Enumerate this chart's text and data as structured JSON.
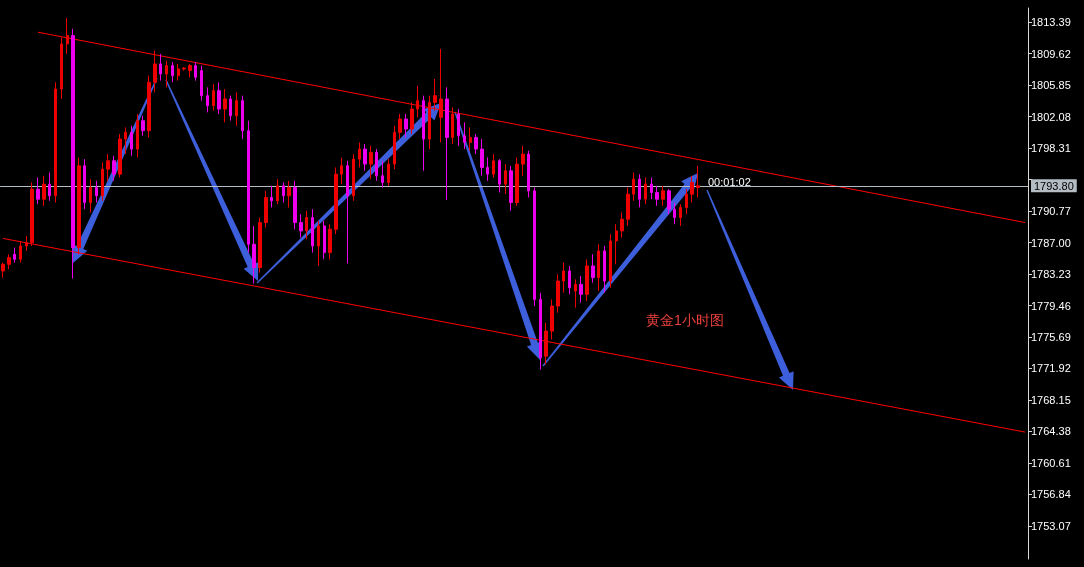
{
  "chart_data": {
    "type": "candlestick",
    "categories": [
      null,
      null,
      null,
      null,
      null,
      null,
      null,
      null,
      null,
      null,
      null,
      null,
      null,
      null,
      null,
      null,
      null,
      null,
      null,
      null,
      null,
      null,
      null,
      null,
      null,
      null,
      null,
      null,
      null,
      null,
      null,
      null,
      null,
      null,
      null,
      null,
      null,
      null,
      null,
      null,
      null,
      null,
      null,
      null,
      null,
      null,
      null,
      null,
      null,
      null,
      null,
      null,
      null,
      null,
      null,
      null,
      null,
      null,
      null,
      null,
      null,
      null,
      null,
      null,
      null,
      null,
      null,
      null,
      null,
      null,
      null,
      null,
      null,
      null,
      null,
      null,
      null,
      null,
      null,
      null,
      null,
      null,
      null,
      null,
      null,
      null,
      null,
      null,
      null,
      null,
      null,
      null,
      null,
      null,
      null,
      null,
      null,
      null,
      null,
      null,
      null,
      null,
      null,
      null,
      null,
      null,
      null,
      null,
      null,
      null,
      null,
      null,
      null,
      null,
      null,
      null,
      null,
      null,
      null,
      null,
      null,
      null,
      null,
      null,
      null,
      null,
      null,
      null,
      null,
      null,
      null,
      null,
      null,
      null,
      null,
      null,
      null,
      null,
      null,
      null,
      null,
      null,
      null,
      null,
      null,
      null,
      null,
      null,
      null,
      null,
      null,
      null,
      null,
      null,
      null,
      null,
      null,
      null,
      null,
      null,
      null,
      null,
      null,
      null,
      null,
      null,
      null,
      null,
      null,
      null,
      null,
      null,
      null,
      null,
      null,
      null
    ],
    "ohlc": [
      [
        1783.6,
        1784.6,
        1782.8,
        1784.4
      ],
      [
        1784.4,
        1785.6,
        1783.8,
        1785.2
      ],
      [
        1785.6,
        1786.4,
        1784.6,
        1785.0
      ],
      [
        1785.0,
        1787.2,
        1784.6,
        1786.6
      ],
      [
        1786.6,
        1787.8,
        1786.0,
        1787.0
      ],
      [
        1787.0,
        1794.2,
        1786.6,
        1793.4
      ],
      [
        1793.4,
        1794.8,
        1791.6,
        1792.2
      ],
      [
        1792.2,
        1795.0,
        1791.4,
        1794.0
      ],
      [
        1794.0,
        1795.4,
        1792.0,
        1792.6
      ],
      [
        1792.6,
        1806.2,
        1791.8,
        1805.4
      ],
      [
        1805.4,
        1811.6,
        1804.2,
        1810.8
      ],
      [
        1810.8,
        1813.9,
        1809.6,
        1811.8
      ],
      [
        1811.8,
        1812.6,
        1782.7,
        1786.4
      ],
      [
        1786.4,
        1797.2,
        1785.6,
        1796.2
      ],
      [
        1796.2,
        1797.0,
        1791.0,
        1791.8
      ],
      [
        1791.8,
        1794.6,
        1790.6,
        1793.6
      ],
      [
        1793.6,
        1794.4,
        1791.8,
        1792.6
      ],
      [
        1792.6,
        1796.6,
        1792.0,
        1795.8
      ],
      [
        1795.8,
        1797.6,
        1794.4,
        1796.8
      ],
      [
        1796.8,
        1797.4,
        1794.4,
        1795.2
      ],
      [
        1795.2,
        1800.0,
        1794.8,
        1799.4
      ],
      [
        1799.4,
        1800.8,
        1797.6,
        1800.2
      ],
      [
        1800.2,
        1801.0,
        1797.4,
        1798.2
      ],
      [
        1798.2,
        1802.4,
        1797.2,
        1801.6
      ],
      [
        1801.6,
        1802.2,
        1799.8,
        1800.4
      ],
      [
        1800.4,
        1807.0,
        1799.6,
        1806.2
      ],
      [
        1806.2,
        1810.0,
        1805.0,
        1808.4
      ],
      [
        1808.4,
        1809.6,
        1806.4,
        1807.2
      ],
      [
        1807.2,
        1808.8,
        1805.6,
        1808.2
      ],
      [
        1808.2,
        1808.6,
        1806.2,
        1807.0
      ],
      [
        1807.0,
        1808.4,
        1806.4,
        1807.8
      ],
      [
        1807.8,
        1808.0,
        1807.6,
        1807.9
      ],
      [
        1807.6,
        1808.4,
        1806.8,
        1808.2
      ],
      [
        1808.2,
        1808.6,
        1806.4,
        1806.8
      ],
      [
        1807.6,
        1808.2,
        1804.0,
        1804.6
      ],
      [
        1804.6,
        1805.6,
        1802.6,
        1803.4
      ],
      [
        1803.4,
        1806.0,
        1802.8,
        1805.2
      ],
      [
        1805.2,
        1806.2,
        1802.4,
        1803.0
      ],
      [
        1803.0,
        1805.4,
        1801.4,
        1804.2
      ],
      [
        1804.2,
        1804.6,
        1801.6,
        1802.2
      ],
      [
        1802.2,
        1805.0,
        1801.0,
        1804.0
      ],
      [
        1804.0,
        1804.6,
        1799.4,
        1800.4
      ],
      [
        1800.4,
        1801.6,
        1785.8,
        1786.8
      ],
      [
        1786.8,
        1789.0,
        1782.1,
        1784.0
      ],
      [
        1784.0,
        1790.0,
        1783.4,
        1789.4
      ],
      [
        1789.4,
        1793.2,
        1788.8,
        1792.4
      ],
      [
        1792.4,
        1793.8,
        1791.2,
        1792.0
      ],
      [
        1792.0,
        1794.6,
        1791.6,
        1793.8
      ],
      [
        1793.8,
        1794.2,
        1791.8,
        1792.6
      ],
      [
        1792.6,
        1794.4,
        1791.2,
        1793.6
      ],
      [
        1793.6,
        1794.4,
        1788.6,
        1789.4
      ],
      [
        1789.4,
        1790.4,
        1787.6,
        1788.4
      ],
      [
        1788.4,
        1790.8,
        1787.4,
        1790.0
      ],
      [
        1790.0,
        1791.0,
        1785.8,
        1786.6
      ],
      [
        1786.6,
        1789.6,
        1784.2,
        1789.0
      ],
      [
        1789.0,
        1789.6,
        1785.0,
        1785.8
      ],
      [
        1785.8,
        1789.2,
        1785.0,
        1788.6
      ],
      [
        1788.6,
        1796.0,
        1788.0,
        1795.2
      ],
      [
        1795.2,
        1797.2,
        1794.0,
        1796.2
      ],
      [
        1796.2,
        1796.8,
        1784.5,
        1792.6
      ],
      [
        1792.6,
        1797.6,
        1792.0,
        1797.0
      ],
      [
        1797.0,
        1799.0,
        1796.0,
        1798.2
      ],
      [
        1798.2,
        1798.8,
        1795.6,
        1796.4
      ],
      [
        1796.4,
        1798.6,
        1794.6,
        1797.8
      ],
      [
        1797.8,
        1798.2,
        1794.4,
        1795.0
      ],
      [
        1795.0,
        1796.8,
        1793.6,
        1794.2
      ],
      [
        1794.2,
        1797.0,
        1793.8,
        1796.4
      ],
      [
        1796.4,
        1801.0,
        1795.8,
        1800.2
      ],
      [
        1800.2,
        1802.4,
        1799.4,
        1801.8
      ],
      [
        1801.8,
        1802.4,
        1799.6,
        1800.6
      ],
      [
        1800.6,
        1803.8,
        1800.0,
        1803.0
      ],
      [
        1803.0,
        1805.8,
        1802.0,
        1804.0
      ],
      [
        1804.0,
        1804.6,
        1795.6,
        1799.4
      ],
      [
        1799.4,
        1804.6,
        1798.2,
        1803.8
      ],
      [
        1803.8,
        1806.6,
        1802.8,
        1804.6
      ],
      [
        1802.0,
        1810.2,
        1799.0,
        1804.2
      ],
      [
        1804.2,
        1805.6,
        1792.1,
        1799.6
      ],
      [
        1799.6,
        1803.2,
        1798.8,
        1802.4
      ],
      [
        1802.4,
        1803.0,
        1798.6,
        1799.8
      ],
      [
        1799.8,
        1801.4,
        1798.2,
        1799.0
      ],
      [
        1799.0,
        1800.8,
        1798.0,
        1799.6
      ],
      [
        1799.6,
        1800.0,
        1797.6,
        1798.2
      ],
      [
        1798.2,
        1799.4,
        1795.0,
        1796.0
      ],
      [
        1796.0,
        1797.2,
        1794.4,
        1795.2
      ],
      [
        1795.2,
        1797.6,
        1794.8,
        1796.8
      ],
      [
        1796.8,
        1797.0,
        1793.0,
        1794.0
      ],
      [
        1794.0,
        1796.4,
        1792.8,
        1795.6
      ],
      [
        1795.6,
        1796.2,
        1790.8,
        1791.8
      ],
      [
        1791.8,
        1797.2,
        1791.4,
        1796.4
      ],
      [
        1796.4,
        1798.6,
        1795.0,
        1797.6
      ],
      [
        1797.6,
        1798.0,
        1792.4,
        1793.2
      ],
      [
        1793.2,
        1793.6,
        1779.4,
        1780.2
      ],
      [
        1780.2,
        1781.0,
        1771.8,
        1773.2
      ],
      [
        1773.4,
        1777.4,
        1772.4,
        1776.4
      ],
      [
        1776.4,
        1780.2,
        1775.4,
        1779.4
      ],
      [
        1779.4,
        1783.2,
        1778.6,
        1782.4
      ],
      [
        1782.4,
        1784.6,
        1781.0,
        1783.6
      ],
      [
        1783.6,
        1784.2,
        1780.8,
        1781.6
      ],
      [
        1781.2,
        1782.6,
        1779.2,
        1782.0
      ],
      [
        1782.0,
        1783.0,
        1779.8,
        1780.8
      ],
      [
        1780.8,
        1785.0,
        1780.0,
        1784.2
      ],
      [
        1784.2,
        1785.6,
        1782.2,
        1782.8
      ],
      [
        1782.8,
        1786.8,
        1781.2,
        1786.0
      ],
      [
        1786.0,
        1786.6,
        1781.0,
        1782.4
      ],
      [
        1782.4,
        1788.0,
        1781.6,
        1787.2
      ],
      [
        1787.2,
        1789.2,
        1784.4,
        1788.4
      ],
      [
        1788.4,
        1790.6,
        1787.6,
        1789.8
      ],
      [
        1789.8,
        1793.6,
        1789.0,
        1792.8
      ],
      [
        1792.8,
        1795.4,
        1792.0,
        1794.6
      ],
      [
        1794.6,
        1795.2,
        1791.2,
        1792.2
      ],
      [
        1792.2,
        1794.8,
        1791.6,
        1794.0
      ],
      [
        1794.0,
        1794.8,
        1792.2,
        1793.0
      ],
      [
        1793.0,
        1793.8,
        1791.4,
        1792.2
      ],
      [
        1792.2,
        1793.8,
        1791.4,
        1793.2
      ],
      [
        1793.2,
        1793.4,
        1790.4,
        1791.0
      ],
      [
        1791.0,
        1791.8,
        1789.2,
        1790.0
      ],
      [
        1790.0,
        1791.6,
        1789.0,
        1791.2
      ],
      [
        1791.2,
        1793.4,
        1790.4,
        1792.8
      ],
      [
        1792.8,
        1795.0,
        1791.8,
        1794.2
      ],
      [
        1793.6,
        1796.2,
        1792.4,
        1793.8
      ],
      null,
      null,
      null,
      null,
      null,
      null,
      null,
      null,
      null,
      null,
      null,
      null,
      null,
      null,
      null,
      null,
      null,
      null,
      null,
      null,
      null,
      null,
      null,
      null,
      null,
      null,
      null,
      null,
      null,
      null,
      null,
      null,
      null,
      null,
      null,
      null,
      null,
      null,
      null,
      null,
      null,
      null,
      null,
      null,
      null,
      null,
      null,
      null,
      null,
      null,
      null,
      null,
      null,
      null,
      null,
      null
    ],
    "colors": [
      "#ee0000",
      "#ee0000",
      "#ee00ee",
      "#ee0000",
      "#ee0000",
      "#ee0000",
      "#ee00ee",
      "#ee0000",
      "#ee00ee",
      "#ee0000",
      "#ee0000",
      "#ee0000",
      "#ee00ee",
      "#ee0000",
      "#ee00ee",
      "#ee0000",
      "#ee00ee",
      "#ee0000",
      "#ee0000",
      "#ee00ee",
      "#ee0000",
      "#ee0000",
      "#ee00ee",
      "#ee0000",
      "#ee00ee",
      "#ee0000",
      "#ee0000",
      "#ee00ee",
      "#ee0000",
      "#ee00ee",
      "#ee0000",
      "#ee0000",
      "#ee0000",
      "#ee00ee",
      "#ee00ee",
      "#ee00ee",
      "#ee0000",
      "#ee00ee",
      "#ee0000",
      "#ee00ee",
      "#ee0000",
      "#ee00ee",
      "#ee00ee",
      "#ee00ee",
      "#ee0000",
      "#ee0000",
      "#ee00ee",
      "#ee0000",
      "#ee00ee",
      "#ee0000",
      "#ee00ee",
      "#ee00ee",
      "#ee0000",
      "#ee00ee",
      "#ee0000",
      "#ee00ee",
      "#ee0000",
      "#ee0000",
      "#ee0000",
      "#ee00ee",
      "#ee0000",
      "#ee0000",
      "#ee00ee",
      "#ee0000",
      "#ee00ee",
      "#ee00ee",
      "#ee0000",
      "#ee0000",
      "#ee0000",
      "#ee00ee",
      "#ee0000",
      "#ee0000",
      "#ee00ee",
      "#ee0000",
      "#ee0000",
      "#ee0000",
      "#ee00ee",
      "#ee0000",
      "#ee00ee",
      "#ee00ee",
      "#ee0000",
      "#ee00ee",
      "#ee00ee",
      "#ee00ee",
      "#ee0000",
      "#ee00ee",
      "#ee0000",
      "#ee00ee",
      "#ee0000",
      "#ee0000",
      "#ee00ee",
      "#ee00ee",
      "#ee00ee",
      "#ee0000",
      "#ee0000",
      "#ee0000",
      "#ee0000",
      "#ee00ee",
      "#ee0000",
      "#ee00ee",
      "#ee0000",
      "#ee00ee",
      "#ee0000",
      "#ee00ee",
      "#ee0000",
      "#ee0000",
      "#ee0000",
      "#ee0000",
      "#ee0000",
      "#ee00ee",
      "#ee0000",
      "#ee00ee",
      "#ee00ee",
      "#ee0000",
      "#ee00ee",
      "#ee00ee",
      "#ee0000",
      "#ee0000",
      "#ee0000",
      "#ee0000",
      null,
      null,
      null,
      null,
      null,
      null,
      null,
      null,
      null,
      null,
      null,
      null,
      null,
      null,
      null,
      null,
      null,
      null,
      null,
      null,
      null,
      null,
      null,
      null,
      null,
      null,
      null,
      null,
      null,
      null,
      null,
      null,
      null,
      null,
      null,
      null,
      null,
      null,
      null,
      null,
      null,
      null,
      null,
      null,
      null,
      null,
      null,
      null,
      null,
      null,
      null,
      null,
      null,
      null,
      null,
      null
    ],
    "series": [
      {
        "type": "line",
        "color": "#ff0000",
        "values": [
          null,
          null,
          null,
          null,
          null,
          null,
          1812.2,
          null,
          null,
          null,
          null,
          null,
          null,
          null,
          null,
          null,
          null,
          null,
          null,
          null,
          null,
          null,
          null,
          null,
          null,
          null,
          null,
          null,
          null,
          null,
          null,
          null,
          null,
          null,
          null,
          null,
          null,
          null,
          null,
          null,
          null,
          null,
          null,
          null,
          null,
          null,
          null,
          null,
          null,
          null,
          null,
          null,
          null,
          null,
          null,
          null,
          null,
          null,
          null,
          null,
          null,
          null,
          null,
          null,
          null,
          null,
          null,
          null,
          null,
          null,
          null,
          null,
          null,
          null,
          null,
          null,
          null,
          null,
          null,
          null,
          null,
          null,
          null,
          null,
          null,
          null,
          null,
          null,
          null,
          null,
          null,
          null,
          null,
          null,
          null,
          null,
          null,
          null,
          null,
          null,
          null,
          null,
          null,
          null,
          null,
          null,
          null,
          null,
          null,
          null,
          null,
          null,
          null,
          null,
          null,
          null,
          null,
          null,
          null,
          null,
          null,
          null,
          null,
          null,
          null,
          null,
          null,
          null,
          null,
          null,
          null,
          null,
          null,
          null,
          null,
          null,
          null,
          null,
          null,
          null,
          null,
          null,
          null,
          null,
          null,
          null,
          null,
          null,
          null,
          null,
          null,
          null,
          null,
          null,
          null,
          null,
          null,
          null,
          null,
          null,
          null,
          null,
          null,
          null,
          null,
          null,
          null,
          null,
          null,
          null,
          null,
          null,
          null,
          null,
          null,
          1789.4
        ]
      },
      {
        "type": "line",
        "color": "#ff0000",
        "values": [
          1787.5,
          null,
          null,
          null,
          null,
          null,
          null,
          null,
          null,
          null,
          null,
          null,
          null,
          null,
          null,
          null,
          null,
          null,
          null,
          null,
          null,
          null,
          null,
          null,
          null,
          null,
          null,
          null,
          null,
          null,
          null,
          null,
          null,
          null,
          null,
          null,
          null,
          null,
          null,
          null,
          null,
          null,
          null,
          null,
          null,
          null,
          null,
          null,
          null,
          null,
          null,
          null,
          null,
          null,
          null,
          null,
          null,
          null,
          null,
          null,
          null,
          null,
          null,
          null,
          null,
          null,
          null,
          null,
          null,
          null,
          null,
          null,
          null,
          null,
          null,
          null,
          null,
          null,
          null,
          null,
          null,
          null,
          null,
          null,
          null,
          null,
          null,
          null,
          null,
          null,
          null,
          null,
          null,
          null,
          null,
          null,
          null,
          null,
          null,
          null,
          null,
          null,
          null,
          null,
          null,
          null,
          null,
          null,
          null,
          null,
          null,
          null,
          null,
          null,
          null,
          null,
          null,
          null,
          null,
          null,
          null,
          null,
          null,
          null,
          null,
          null,
          null,
          null,
          null,
          null,
          null,
          null,
          null,
          null,
          null,
          null,
          null,
          null,
          null,
          null,
          null,
          null,
          null,
          null,
          null,
          null,
          null,
          null,
          null,
          null,
          null,
          null,
          null,
          null,
          null,
          null,
          null,
          null,
          null,
          null,
          null,
          null,
          null,
          null,
          null,
          null,
          null,
          null,
          null,
          null,
          null,
          null,
          null,
          null,
          null,
          1764.3
        ]
      }
    ],
    "ylim": [
      1749.1,
      1815.1
    ],
    "yticks": [
      1813.39,
      1809.62,
      1805.85,
      1802.08,
      1798.31,
      {
        "value": 1794.54,
        "label": null
      },
      1790.77,
      {
        "value": 1787,
        "label": "1787.00"
      },
      1783.23,
      1779.46,
      1775.69,
      1771.92,
      1768.15,
      1764.38,
      1760.61,
      1756.84,
      1753.07
    ],
    "ref_lines": [
      {
        "axis": "y",
        "value": 1793.8,
        "label": "1793.80",
        "color": "#b4bcc4"
      }
    ],
    "annotations": [
      "00:01:02",
      "黄金1小时图"
    ]
  }
}
